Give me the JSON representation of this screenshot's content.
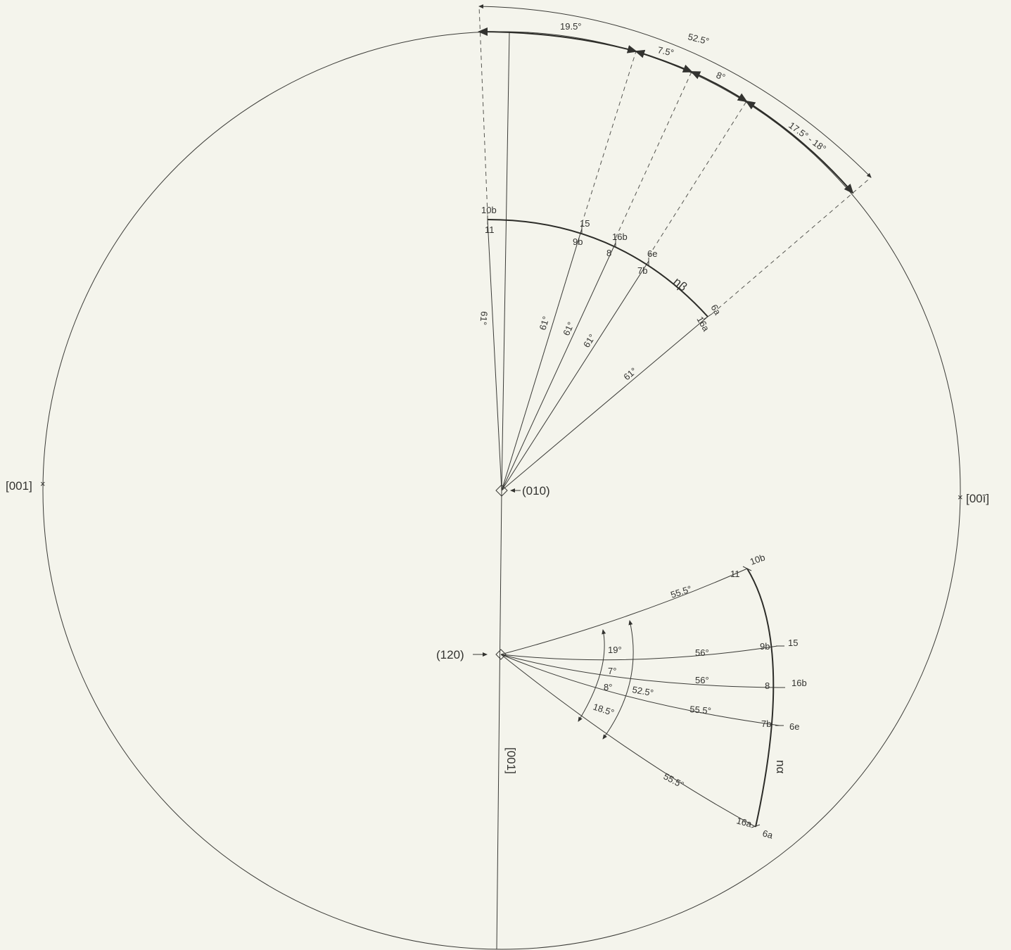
{
  "labels": {
    "axis_left": "[001]",
    "axis_right": "[00ī]",
    "axis_bottom": "[001]",
    "pole_010": "(010)",
    "pole_120": "(120)",
    "n_beta": "nβ",
    "n_alpha": "nα"
  },
  "top_arc": {
    "total": "52.5°",
    "segments": [
      "19.5°",
      "7.5°",
      "8°",
      "17.5° - 18°"
    ]
  },
  "upper_fan": {
    "angle_labels": [
      "61°",
      "61°",
      "61°",
      "61°",
      "61°"
    ],
    "specimens_outer": [
      "10b",
      "15",
      "16b",
      "6e",
      "6a"
    ],
    "specimens_inner": [
      "11",
      "9b",
      "8",
      "7b",
      "16a"
    ]
  },
  "lower_fan": {
    "ray_angles": [
      "55.5°",
      "56°",
      "56°",
      "55.5°",
      "55.5°"
    ],
    "specimens_left": [
      "11",
      "9b",
      "8",
      "7b",
      "16a"
    ],
    "specimens_right": [
      "10b",
      "15",
      "16b",
      "6e",
      "6a"
    ],
    "inner_arcs": [
      "19°",
      "7°",
      "8°",
      "18.5°"
    ],
    "outer_arc": "52.5°"
  }
}
